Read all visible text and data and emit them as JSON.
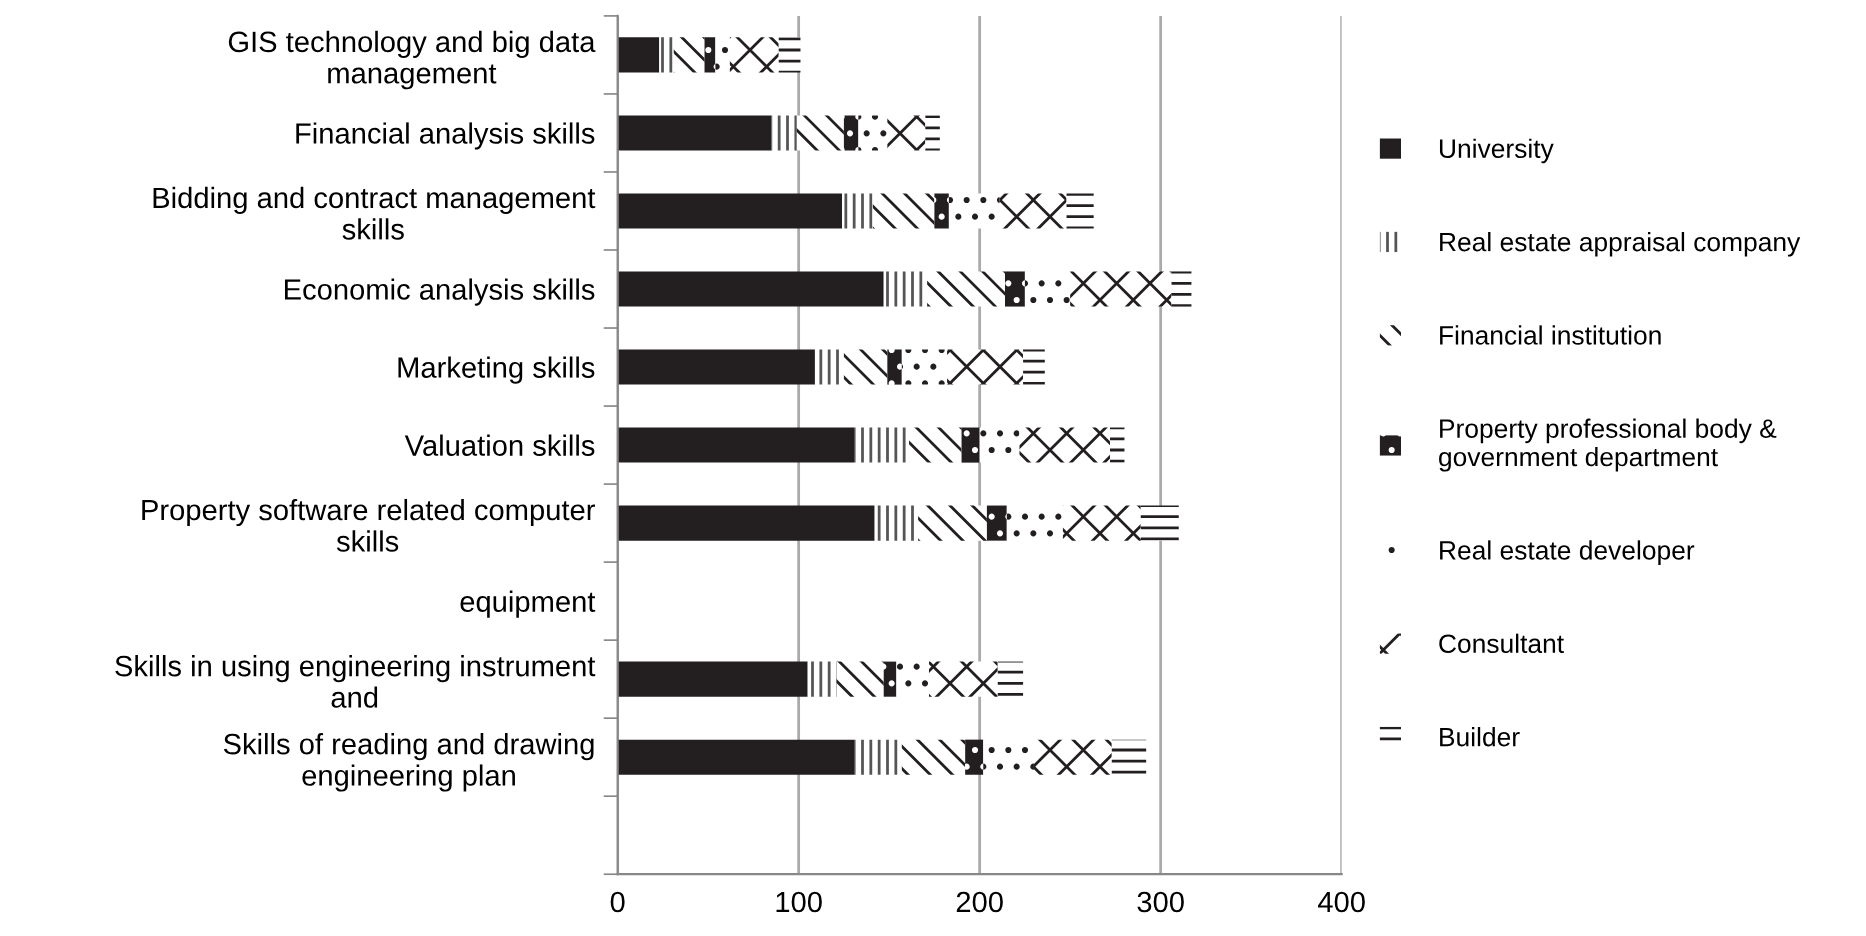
{
  "chart_data": {
    "type": "bar",
    "orientation": "horizontal",
    "stacked": true,
    "categories": [
      "GIS technology and big data\nmanagement",
      "Financial analysis skills",
      "Bidding and contract management\nskills",
      "Economic analysis skills",
      "Marketing skills",
      "Valuation skills",
      "Property software related computer\nskills",
      "equipment",
      "Skills in using engineering instrument\nand",
      "Skills of reading and drawing\nengineering plan",
      null
    ],
    "series": [
      {
        "name": "University",
        "color": "#231f20",
        "values": [
          23,
          85,
          124,
          147,
          109,
          131,
          142,
          null,
          105,
          131,
          null
        ]
      },
      {
        "name": "Real estate appraisal company",
        "color": "#ffffff",
        "values": [
          8,
          14,
          17,
          24,
          16,
          30,
          24,
          null,
          16,
          26,
          null
        ]
      },
      {
        "name": "Financial institution",
        "color": "#ffffff",
        "values": [
          17,
          26,
          34,
          43,
          24,
          29,
          38,
          null,
          26,
          35,
          null
        ]
      },
      {
        "name": "Property professional body &\ngovernment department",
        "color": "#231f20",
        "values": [
          6,
          8,
          8,
          11,
          8,
          10,
          11,
          null,
          7,
          10,
          null
        ]
      },
      {
        "name": "Real estate developer",
        "color": "#ffffff",
        "values": [
          8,
          16,
          28,
          25,
          25,
          22,
          31,
          null,
          18,
          28,
          null
        ]
      },
      {
        "name": "Consultant",
        "color": "#ffffff",
        "values": [
          27,
          21,
          37,
          56,
          42,
          50,
          43,
          null,
          38,
          43,
          null
        ]
      },
      {
        "name": "Builder",
        "color": "#ffffff",
        "values": [
          12,
          8,
          15,
          11,
          12,
          8,
          21,
          null,
          14,
          19,
          null
        ]
      }
    ],
    "xlim": [
      0,
      400
    ],
    "xticks": [
      0,
      100,
      200,
      300,
      400
    ],
    "grid": "x",
    "legend": "right"
  }
}
